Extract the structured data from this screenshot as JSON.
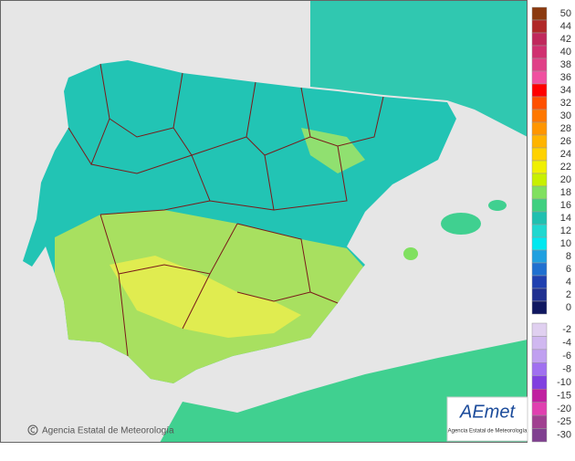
{
  "credit": "Agencia Estatal de Meteorología",
  "logo": {
    "title": "AEmet",
    "subtitle": "Agencia Estatal de Meteorología"
  },
  "legend": {
    "positive": [
      {
        "label": 50,
        "color": "#8b3a10"
      },
      {
        "label": 44,
        "color": "#b02828"
      },
      {
        "label": 42,
        "color": "#c0285c"
      },
      {
        "label": 40,
        "color": "#d03070"
      },
      {
        "label": 38,
        "color": "#e04088"
      },
      {
        "label": 36,
        "color": "#f050a0"
      },
      {
        "label": 34,
        "color": "#ff0000"
      },
      {
        "label": 32,
        "color": "#ff5000"
      },
      {
        "label": 30,
        "color": "#ff7800"
      },
      {
        "label": 28,
        "color": "#ff9600"
      },
      {
        "label": 26,
        "color": "#ffb400"
      },
      {
        "label": 24,
        "color": "#ffd200"
      },
      {
        "label": 22,
        "color": "#f0f000"
      },
      {
        "label": 20,
        "color": "#c8f000"
      },
      {
        "label": 18,
        "color": "#80e060"
      },
      {
        "label": 16,
        "color": "#40d080"
      },
      {
        "label": 14,
        "color": "#20c0b0"
      },
      {
        "label": 12,
        "color": "#20d8d0"
      },
      {
        "label": 10,
        "color": "#00e8f0"
      },
      {
        "label": 8,
        "color": "#20a0e0"
      },
      {
        "label": 6,
        "color": "#2070d0"
      },
      {
        "label": 4,
        "color": "#2040b0"
      },
      {
        "label": 2,
        "color": "#203090"
      },
      {
        "label": 0,
        "color": "#101860"
      }
    ],
    "negative": [
      {
        "label": -2,
        "color": "#e0d0f0"
      },
      {
        "label": -4,
        "color": "#d0b8f0"
      },
      {
        "label": -6,
        "color": "#c0a0f0"
      },
      {
        "label": -8,
        "color": "#a070f0"
      },
      {
        "label": -10,
        "color": "#8040e0"
      },
      {
        "label": -15,
        "color": "#c020a0"
      },
      {
        "label": -20,
        "color": "#e040b0"
      },
      {
        "label": -25,
        "color": "#a04090"
      },
      {
        "label": -30,
        "color": "#804090"
      }
    ]
  }
}
